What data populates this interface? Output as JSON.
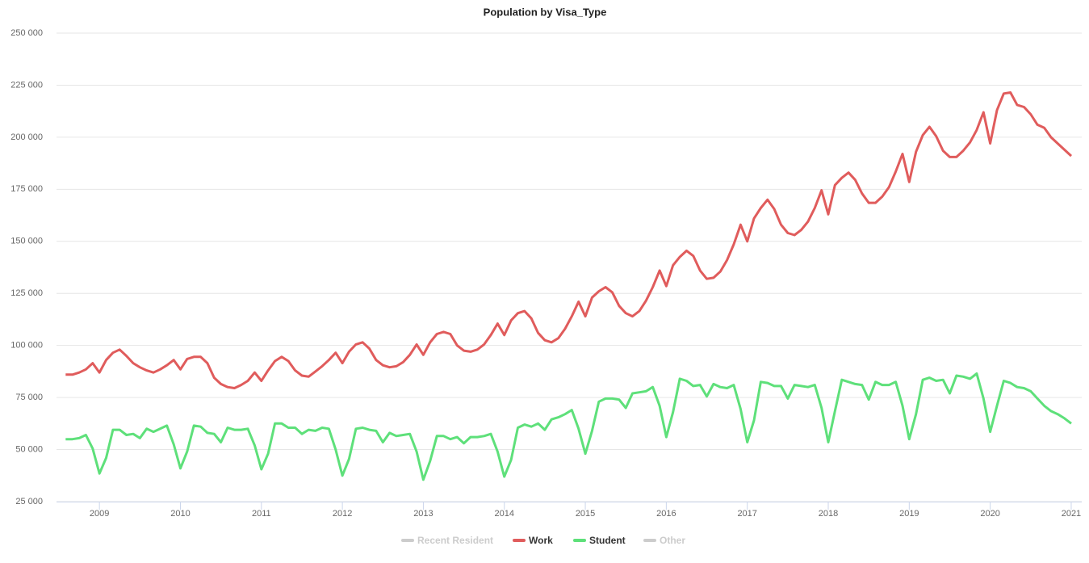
{
  "chart_data": {
    "type": "line",
    "title": "Population by Visa_Type",
    "x": [
      2008.583,
      2008.667,
      2008.75,
      2008.833,
      2008.917,
      2009,
      2009.083,
      2009.167,
      2009.25,
      2009.333,
      2009.417,
      2009.5,
      2009.583,
      2009.667,
      2009.75,
      2009.833,
      2009.917,
      2010,
      2010.083,
      2010.167,
      2010.25,
      2010.333,
      2010.417,
      2010.5,
      2010.583,
      2010.667,
      2010.75,
      2010.833,
      2010.917,
      2011,
      2011.083,
      2011.167,
      2011.25,
      2011.333,
      2011.417,
      2011.5,
      2011.583,
      2011.667,
      2011.75,
      2011.833,
      2011.917,
      2012,
      2012.083,
      2012.167,
      2012.25,
      2012.333,
      2012.417,
      2012.5,
      2012.583,
      2012.667,
      2012.75,
      2012.833,
      2012.917,
      2013,
      2013.083,
      2013.167,
      2013.25,
      2013.333,
      2013.417,
      2013.5,
      2013.583,
      2013.667,
      2013.75,
      2013.833,
      2013.917,
      2014,
      2014.083,
      2014.167,
      2014.25,
      2014.333,
      2014.417,
      2014.5,
      2014.583,
      2014.667,
      2014.75,
      2014.833,
      2014.917,
      2015,
      2015.083,
      2015.167,
      2015.25,
      2015.333,
      2015.417,
      2015.5,
      2015.583,
      2015.667,
      2015.75,
      2015.833,
      2015.917,
      2016,
      2016.083,
      2016.167,
      2016.25,
      2016.333,
      2016.417,
      2016.5,
      2016.583,
      2016.667,
      2016.75,
      2016.833,
      2016.917,
      2017,
      2017.083,
      2017.167,
      2017.25,
      2017.333,
      2017.417,
      2017.5,
      2017.583,
      2017.667,
      2017.75,
      2017.833,
      2017.917,
      2018,
      2018.083,
      2018.167,
      2018.25,
      2018.333,
      2018.417,
      2018.5,
      2018.583,
      2018.667,
      2018.75,
      2018.833,
      2018.917,
      2019,
      2019.083,
      2019.167,
      2019.25,
      2019.333,
      2019.417,
      2019.5,
      2019.583,
      2019.667,
      2019.75,
      2019.833,
      2019.917,
      2020,
      2020.083,
      2020.167,
      2020.25,
      2020.333,
      2020.417,
      2020.5,
      2020.583,
      2020.667,
      2020.75,
      2020.833,
      2020.917,
      2021
    ],
    "series": [
      {
        "name": "Recent Resident",
        "color": "#cccccc",
        "visible": false
      },
      {
        "name": "Work",
        "color": "#e05c5c",
        "visible": true,
        "values": [
          86000,
          86000,
          87000,
          88500,
          91500,
          87000,
          93000,
          96500,
          98000,
          95000,
          91500,
          89500,
          88000,
          87000,
          88500,
          90500,
          93000,
          88500,
          93500,
          94500,
          94500,
          91500,
          84500,
          81500,
          80000,
          79500,
          81000,
          83000,
          87000,
          83000,
          88000,
          92500,
          94500,
          92500,
          88000,
          85500,
          85000,
          87500,
          90000,
          93000,
          96500,
          91500,
          97000,
          100500,
          101500,
          98500,
          93000,
          90500,
          89500,
          90000,
          92000,
          95500,
          100500,
          95500,
          101500,
          105500,
          106500,
          105500,
          100000,
          97500,
          97000,
          98000,
          100500,
          105000,
          110500,
          105000,
          112000,
          115500,
          116500,
          113000,
          106000,
          102500,
          101500,
          103500,
          108000,
          114000,
          121000,
          114000,
          123000,
          126000,
          128000,
          125500,
          119000,
          115500,
          114000,
          116500,
          121500,
          128000,
          136000,
          128500,
          138500,
          142500,
          145500,
          143000,
          136000,
          132000,
          132500,
          135500,
          141000,
          148500,
          158000,
          150000,
          161000,
          166000,
          170000,
          165500,
          158000,
          154000,
          153000,
          155500,
          159500,
          166000,
          174500,
          163000,
          177000,
          180500,
          183000,
          179500,
          173000,
          168500,
          168500,
          171500,
          176000,
          183500,
          192000,
          178500,
          193000,
          201000,
          205000,
          200500,
          193500,
          190500,
          190500,
          193500,
          197500,
          203500,
          212000,
          197000,
          213000,
          221000,
          221500,
          215500,
          214500,
          211000,
          206000,
          204500,
          200000,
          197000,
          194000,
          191000
        ]
      },
      {
        "name": "Student",
        "color": "#5ee07a",
        "visible": true,
        "values": [
          55000,
          55000,
          55500,
          57000,
          50500,
          38500,
          46000,
          59500,
          59500,
          57000,
          57500,
          55500,
          60000,
          58500,
          60000,
          61500,
          52500,
          41000,
          49000,
          61500,
          61000,
          58000,
          57500,
          53500,
          60500,
          59500,
          59500,
          60000,
          52000,
          40500,
          48000,
          62500,
          62500,
          60500,
          60500,
          57500,
          59500,
          59000,
          60500,
          60000,
          50000,
          37500,
          45500,
          60000,
          60500,
          59500,
          59000,
          53500,
          58000,
          56500,
          57000,
          57500,
          49000,
          35500,
          44500,
          56500,
          56500,
          55000,
          56000,
          53000,
          56000,
          56000,
          56500,
          57500,
          49000,
          37000,
          45000,
          60500,
          62000,
          61000,
          62500,
          59500,
          64500,
          65500,
          67000,
          69000,
          60000,
          48000,
          59000,
          73000,
          74500,
          74500,
          74000,
          70000,
          77000,
          77500,
          78000,
          80000,
          71000,
          56000,
          68000,
          84000,
          83000,
          80500,
          81000,
          75500,
          81500,
          80000,
          79500,
          81000,
          69500,
          53500,
          64000,
          82500,
          82000,
          80500,
          80500,
          74500,
          81000,
          80500,
          80000,
          81000,
          70000,
          53500,
          68500,
          83500,
          82500,
          81500,
          81000,
          74000,
          82500,
          81000,
          81000,
          82500,
          71000,
          55000,
          67000,
          83500,
          84500,
          83000,
          83500,
          77000,
          85500,
          85000,
          84000,
          86500,
          74500,
          58500,
          71000,
          83000,
          82000,
          80000,
          79500,
          78000,
          74500,
          71000,
          68500,
          67000,
          65000,
          62500
        ]
      },
      {
        "name": "Other",
        "color": "#cccccc",
        "visible": false
      }
    ],
    "xlim": [
      2008.47,
      2021.13
    ],
    "xticks": [
      2009,
      2010,
      2011,
      2012,
      2013,
      2014,
      2015,
      2016,
      2017,
      2018,
      2019,
      2020,
      2021
    ],
    "ylim": [
      25000,
      250000
    ],
    "yticks": [
      {
        "value": 25000,
        "label": "25 000"
      },
      {
        "value": 50000,
        "label": "50 000"
      },
      {
        "value": 75000,
        "label": "75 000"
      },
      {
        "value": 100000,
        "label": "100 000"
      },
      {
        "value": 125000,
        "label": "125 000"
      },
      {
        "value": 150000,
        "label": "150 000"
      },
      {
        "value": 175000,
        "label": "175 000"
      },
      {
        "value": 200000,
        "label": "200 000"
      },
      {
        "value": 225000,
        "label": "225 000"
      },
      {
        "value": 250000,
        "label": "250 000"
      }
    ],
    "grid": true,
    "legend": "bottom"
  }
}
